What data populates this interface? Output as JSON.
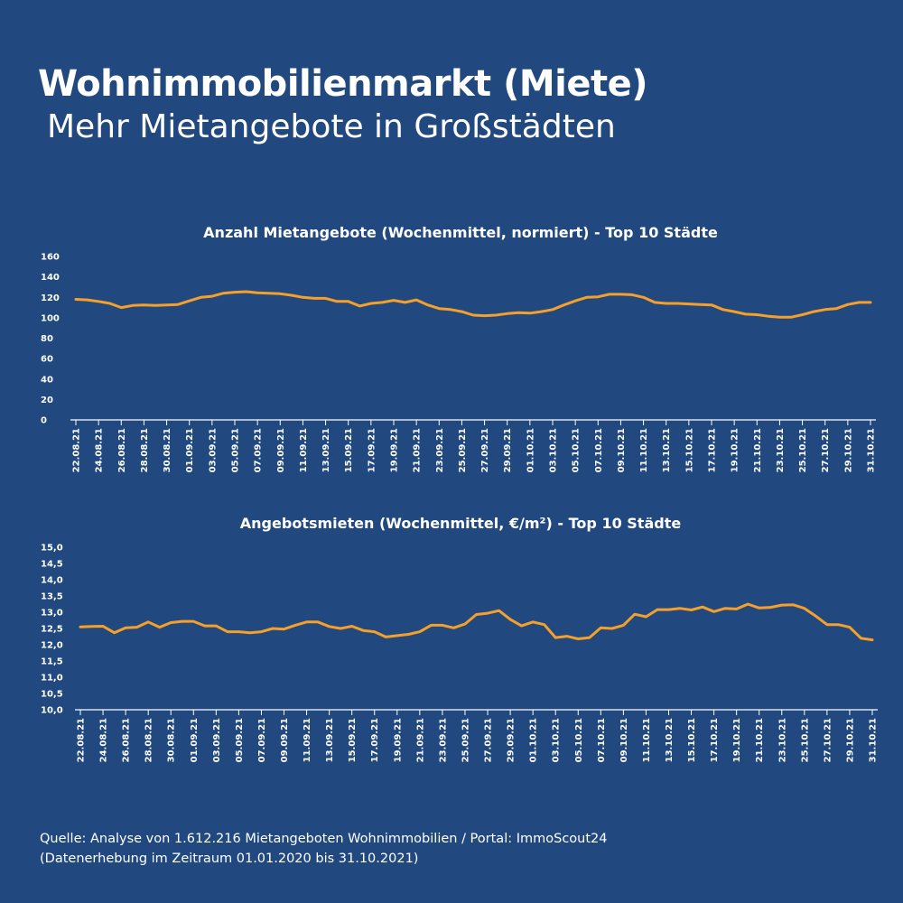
{
  "header": {
    "title": "Wohnimmobilienmarkt (Miete)",
    "subtitle": "Mehr Mietangebote in Großstädten"
  },
  "footer": {
    "line1": "Quelle: Analyse von 1.612.216 Mietangeboten Wohnimmobilien / Portal: ImmoScout24",
    "line2": "(Datenerhebung im Zeitraum 01.01.2020 bis  31.10.2021)"
  },
  "colors": {
    "background": "#21497f",
    "line": "#f5a02a",
    "axis": "#ffffff"
  },
  "chart_data": [
    {
      "type": "line",
      "title": "Anzahl Mietangebote (Wochenmittel, normiert) - Top 10 Städte",
      "xlabel": "",
      "ylabel": "",
      "ylim": [
        0,
        160
      ],
      "yticks": [
        "0",
        "20",
        "40",
        "60",
        "80",
        "100",
        "120",
        "140",
        "160"
      ],
      "grid": false,
      "x": [
        "22.08.21",
        "23.08.21",
        "24.08.21",
        "25.08.21",
        "26.08.21",
        "27.08.21",
        "28.08.21",
        "29.08.21",
        "30.08.21",
        "31.08.21",
        "01.09.21",
        "02.09.21",
        "03.09.21",
        "04.09.21",
        "05.09.21",
        "06.09.21",
        "07.09.21",
        "08.09.21",
        "09.09.21",
        "10.09.21",
        "11.09.21",
        "12.09.21",
        "13.09.21",
        "14.09.21",
        "15.09.21",
        "16.09.21",
        "17.09.21",
        "18.09.21",
        "19.09.21",
        "20.09.21",
        "21.09.21",
        "22.09.21",
        "23.09.21",
        "24.09.21",
        "25.09.21",
        "26.09.21",
        "27.09.21",
        "28.09.21",
        "29.09.21",
        "30.09.21",
        "01.10.21",
        "02.10.21",
        "03.10.21",
        "04.10.21",
        "05.10.21",
        "06.10.21",
        "07.10.21",
        "08.10.21",
        "09.10.21",
        "10.10.21",
        "11.10.21",
        "12.10.21",
        "13.10.21",
        "14.10.21",
        "15.10.21",
        "16.10.21",
        "17.10.21",
        "18.10.21",
        "19.10.21",
        "20.10.21",
        "21.10.21",
        "22.10.21",
        "23.10.21",
        "24.10.21",
        "25.10.21",
        "26.10.21",
        "27.10.21",
        "28.10.21",
        "29.10.21",
        "30.10.21",
        "31.10.21"
      ],
      "xtick_labels": [
        "22.08.21",
        "24.08.21",
        "26.08.21",
        "28.08.21",
        "30.08.21",
        "01.09.21",
        "03.09.21",
        "05.09.21",
        "07.09.21",
        "09.09.21",
        "11.09.21",
        "13.09.21",
        "15.09.21",
        "17.09.21",
        "19.09.21",
        "21.09.21",
        "23.09.21",
        "25.09.21",
        "27.09.21",
        "29.09.21",
        "01.10.21",
        "03.10.21",
        "05.10.21",
        "07.10.21",
        "09.10.21",
        "11.10.21",
        "13.10.21",
        "15.10.21",
        "17.10.21",
        "19.10.21",
        "21.10.21",
        "23.10.21",
        "25.10.21",
        "27.10.21",
        "29.10.21",
        "31.10.21"
      ],
      "series": [
        {
          "values": [
            118,
            117.5,
            116,
            114,
            110,
            112,
            112.5,
            112,
            112.5,
            113,
            116.5,
            120,
            121,
            124,
            125,
            125.5,
            124.5,
            124,
            123.5,
            122,
            120,
            119,
            119,
            116,
            116,
            111.5,
            114,
            115,
            117,
            115,
            117.5,
            112.5,
            109,
            108,
            106,
            102.5,
            102,
            102.5,
            104,
            105,
            104.5,
            106,
            108,
            112.5,
            116.5,
            120,
            120.5,
            123,
            123,
            122.5,
            120,
            115,
            114,
            114,
            113.5,
            113,
            112.5,
            108,
            106,
            103.5,
            103,
            101.5,
            100.5,
            100.5,
            103,
            106,
            108,
            109,
            113,
            115,
            115
          ]
        }
      ]
    },
    {
      "type": "line",
      "title": "Angebotsmieten (Wochenmittel, €/m²) - Top 10 Städte",
      "xlabel": "",
      "ylabel": "",
      "ylim": [
        10,
        15
      ],
      "yticks": [
        "10,0",
        "10,5",
        "11,0",
        "11,5",
        "12,0",
        "12,5",
        "13,0",
        "13,5",
        "14,0",
        "14,5",
        "15,0"
      ],
      "grid": false,
      "x": [
        "22.08.21",
        "23.08.21",
        "24.08.21",
        "25.08.21",
        "26.08.21",
        "27.08.21",
        "28.08.21",
        "29.08.21",
        "30.08.21",
        "31.08.21",
        "01.09.21",
        "02.09.21",
        "03.09.21",
        "04.09.21",
        "05.09.21",
        "06.09.21",
        "07.09.21",
        "08.09.21",
        "09.09.21",
        "10.09.21",
        "11.09.21",
        "12.09.21",
        "13.09.21",
        "14.09.21",
        "15.09.21",
        "16.09.21",
        "17.09.21",
        "18.09.21",
        "19.09.21",
        "20.09.21",
        "21.09.21",
        "22.09.21",
        "23.09.21",
        "24.09.21",
        "25.09.21",
        "26.09.21",
        "27.09.21",
        "28.09.21",
        "29.09.21",
        "30.09.21",
        "01.10.21",
        "02.10.21",
        "03.10.21",
        "04.10.21",
        "05.10.21",
        "06.10.21",
        "07.10.21",
        "08.10.21",
        "09.10.21",
        "10.10.21",
        "11.10.21",
        "12.10.21",
        "13.10.21",
        "14.10.21",
        "15.10.21",
        "16.10.21",
        "17.10.21",
        "18.10.21",
        "19.10.21",
        "20.10.21",
        "21.10.21",
        "22.10.21",
        "23.10.21",
        "24.10.21",
        "25.10.21",
        "26.10.21",
        "27.10.21",
        "28.10.21",
        "29.10.21",
        "30.10.21",
        "31.10.21"
      ],
      "xtick_labels": [
        "22.08.21",
        "24.08.21",
        "26.08.21",
        "28.08.21",
        "30.08.21",
        "01.09.21",
        "03.09.21",
        "05.09.21",
        "07.09.21",
        "09.09.21",
        "11.09.21",
        "13.09.21",
        "15.09.21",
        "17.09.21",
        "19.09.21",
        "21.09.21",
        "23.09.21",
        "25.09.21",
        "27.09.21",
        "29.09.21",
        "01.10.21",
        "03.10.21",
        "05.10.21",
        "07.10.21",
        "09.10.21",
        "11.10.21",
        "13.10.21",
        "15.10.21",
        "17.10.21",
        "19.10.21",
        "21.10.21",
        "23.10.21",
        "25.10.21",
        "27.10.21",
        "29.10.21",
        "31.10.21"
      ],
      "series": [
        {
          "values": [
            12.55,
            12.56,
            12.57,
            12.37,
            12.52,
            12.54,
            12.7,
            12.54,
            12.68,
            12.72,
            12.72,
            12.58,
            12.58,
            12.4,
            12.4,
            12.37,
            12.4,
            12.5,
            12.48,
            12.6,
            12.7,
            12.7,
            12.56,
            12.5,
            12.57,
            12.44,
            12.4,
            12.24,
            12.28,
            12.32,
            12.4,
            12.6,
            12.6,
            12.52,
            12.64,
            12.93,
            12.97,
            13.05,
            12.78,
            12.58,
            12.7,
            12.62,
            12.22,
            12.26,
            12.18,
            12.22,
            12.52,
            12.5,
            12.6,
            12.94,
            12.86,
            13.08,
            13.08,
            13.12,
            13.07,
            13.16,
            13.02,
            13.12,
            13.1,
            13.25,
            13.13,
            13.15,
            13.22,
            13.23,
            13.12,
            12.88,
            12.62,
            12.62,
            12.54,
            12.2,
            12.15
          ]
        }
      ]
    }
  ]
}
